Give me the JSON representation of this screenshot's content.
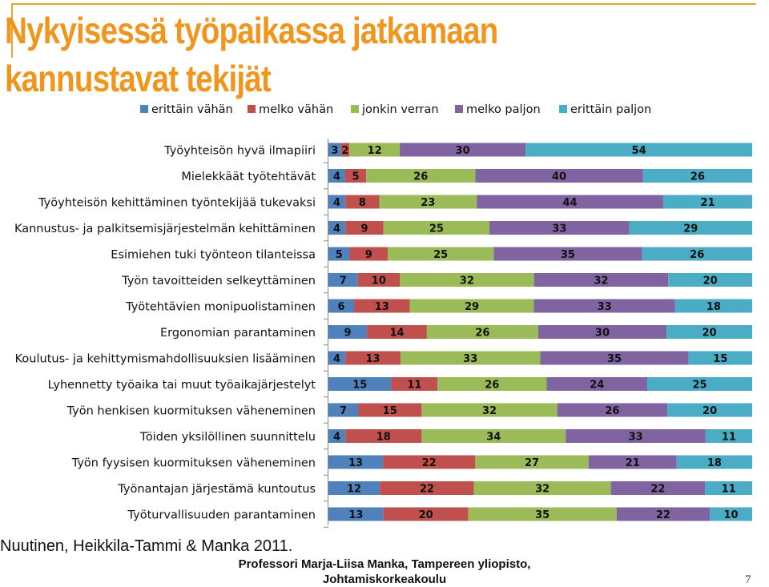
{
  "slide": {
    "title_line1": "Nykyisessä työpaikassa jatkamaan",
    "title_line2": "kannustavat tekijät",
    "source": "Nuutinen, Heikkila-Tammi & Manka 2011.",
    "credit_line1": "Professori Marja-Liisa Manka, Tampereen yliopisto,",
    "credit_line2": "Johtamiskorkeakoulu",
    "page_number": "7"
  },
  "chart_data": {
    "type": "bar",
    "orientation": "horizontal",
    "stacked": "percent",
    "title": "",
    "xlabel": "",
    "ylabel": "",
    "legend_position": "top",
    "grid": false,
    "categories": [
      "Työyhteisön hyvä ilmapiiri",
      "Mielekkäät työtehtävät",
      "Työyhteisön kehittäminen työntekijää tukevaksi",
      "Kannustus- ja palkitsemisjärjestelmän kehittäminen",
      "Esimiehen tuki työnteon tilanteissa",
      "Työn tavoitteiden selkeyttäminen",
      "Työtehtävien monipuolistaminen",
      "Ergonomian parantaminen",
      "Koulutus- ja kehittymismahdollisuuksien lisääminen",
      "Lyhennetty työaika tai muut työaikajärjestelyt",
      "Työn henkisen kuormituksen väheneminen",
      "Töiden yksilöllinen suunnittelu",
      "Työn fyysisen kuormituksen väheneminen",
      "Työnantajan järjestämä kuntoutus",
      "Työturvallisuuden parantaminen"
    ],
    "series": [
      {
        "name": "erittäin vähän",
        "color": "#4f81bd",
        "values": [
          3,
          4,
          4,
          4,
          5,
          7,
          6,
          9,
          4,
          15,
          7,
          4,
          13,
          12,
          13
        ]
      },
      {
        "name": "melko vähän",
        "color": "#c0504d",
        "values": [
          2,
          5,
          8,
          9,
          9,
          10,
          13,
          14,
          13,
          11,
          15,
          18,
          22,
          22,
          20
        ]
      },
      {
        "name": "jonkin verran",
        "color": "#9bbb59",
        "values": [
          12,
          26,
          23,
          25,
          25,
          32,
          29,
          26,
          33,
          26,
          32,
          34,
          27,
          32,
          35
        ]
      },
      {
        "name": "melko paljon",
        "color": "#8064a2",
        "values": [
          30,
          40,
          44,
          33,
          35,
          32,
          33,
          30,
          35,
          24,
          26,
          33,
          21,
          22,
          22
        ]
      },
      {
        "name": "erittäin paljon",
        "color": "#4bacc6",
        "values": [
          54,
          26,
          21,
          29,
          26,
          20,
          18,
          20,
          15,
          25,
          20,
          11,
          18,
          11,
          10
        ]
      }
    ]
  }
}
